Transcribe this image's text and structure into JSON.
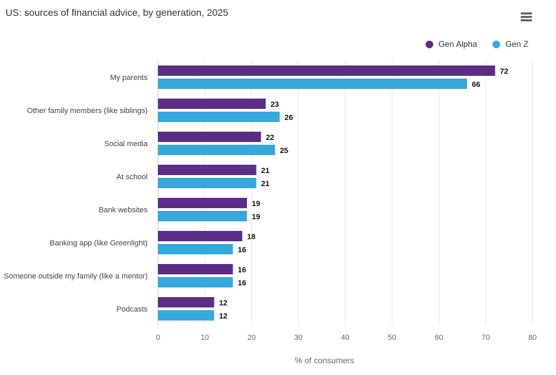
{
  "chart_data": {
    "type": "bar",
    "orientation": "horizontal",
    "title": "US: sources of financial advice, by generation, 2025",
    "xlabel": "% of consumers",
    "ylabel": "",
    "xlim": [
      0,
      80
    ],
    "ticks": [
      0,
      10,
      20,
      30,
      40,
      50,
      60,
      70,
      80
    ],
    "grid": true,
    "legend_position": "top-right",
    "categories": [
      "My parents",
      "Other family members (like siblings)",
      "Social media",
      "At school",
      "Bank websites",
      "Banking app (like Greenlight)",
      "Someone outside my family (like a mentor)",
      "Podcasts"
    ],
    "series": [
      {
        "name": "Gen Alpha",
        "color": "#5c2d86",
        "values": [
          72,
          23,
          22,
          21,
          19,
          18,
          16,
          12
        ]
      },
      {
        "name": "Gen Z",
        "color": "#35a8dc",
        "values": [
          66,
          26,
          25,
          21,
          19,
          16,
          16,
          12
        ]
      }
    ]
  },
  "menu_icon": "hamburger-menu-icon"
}
